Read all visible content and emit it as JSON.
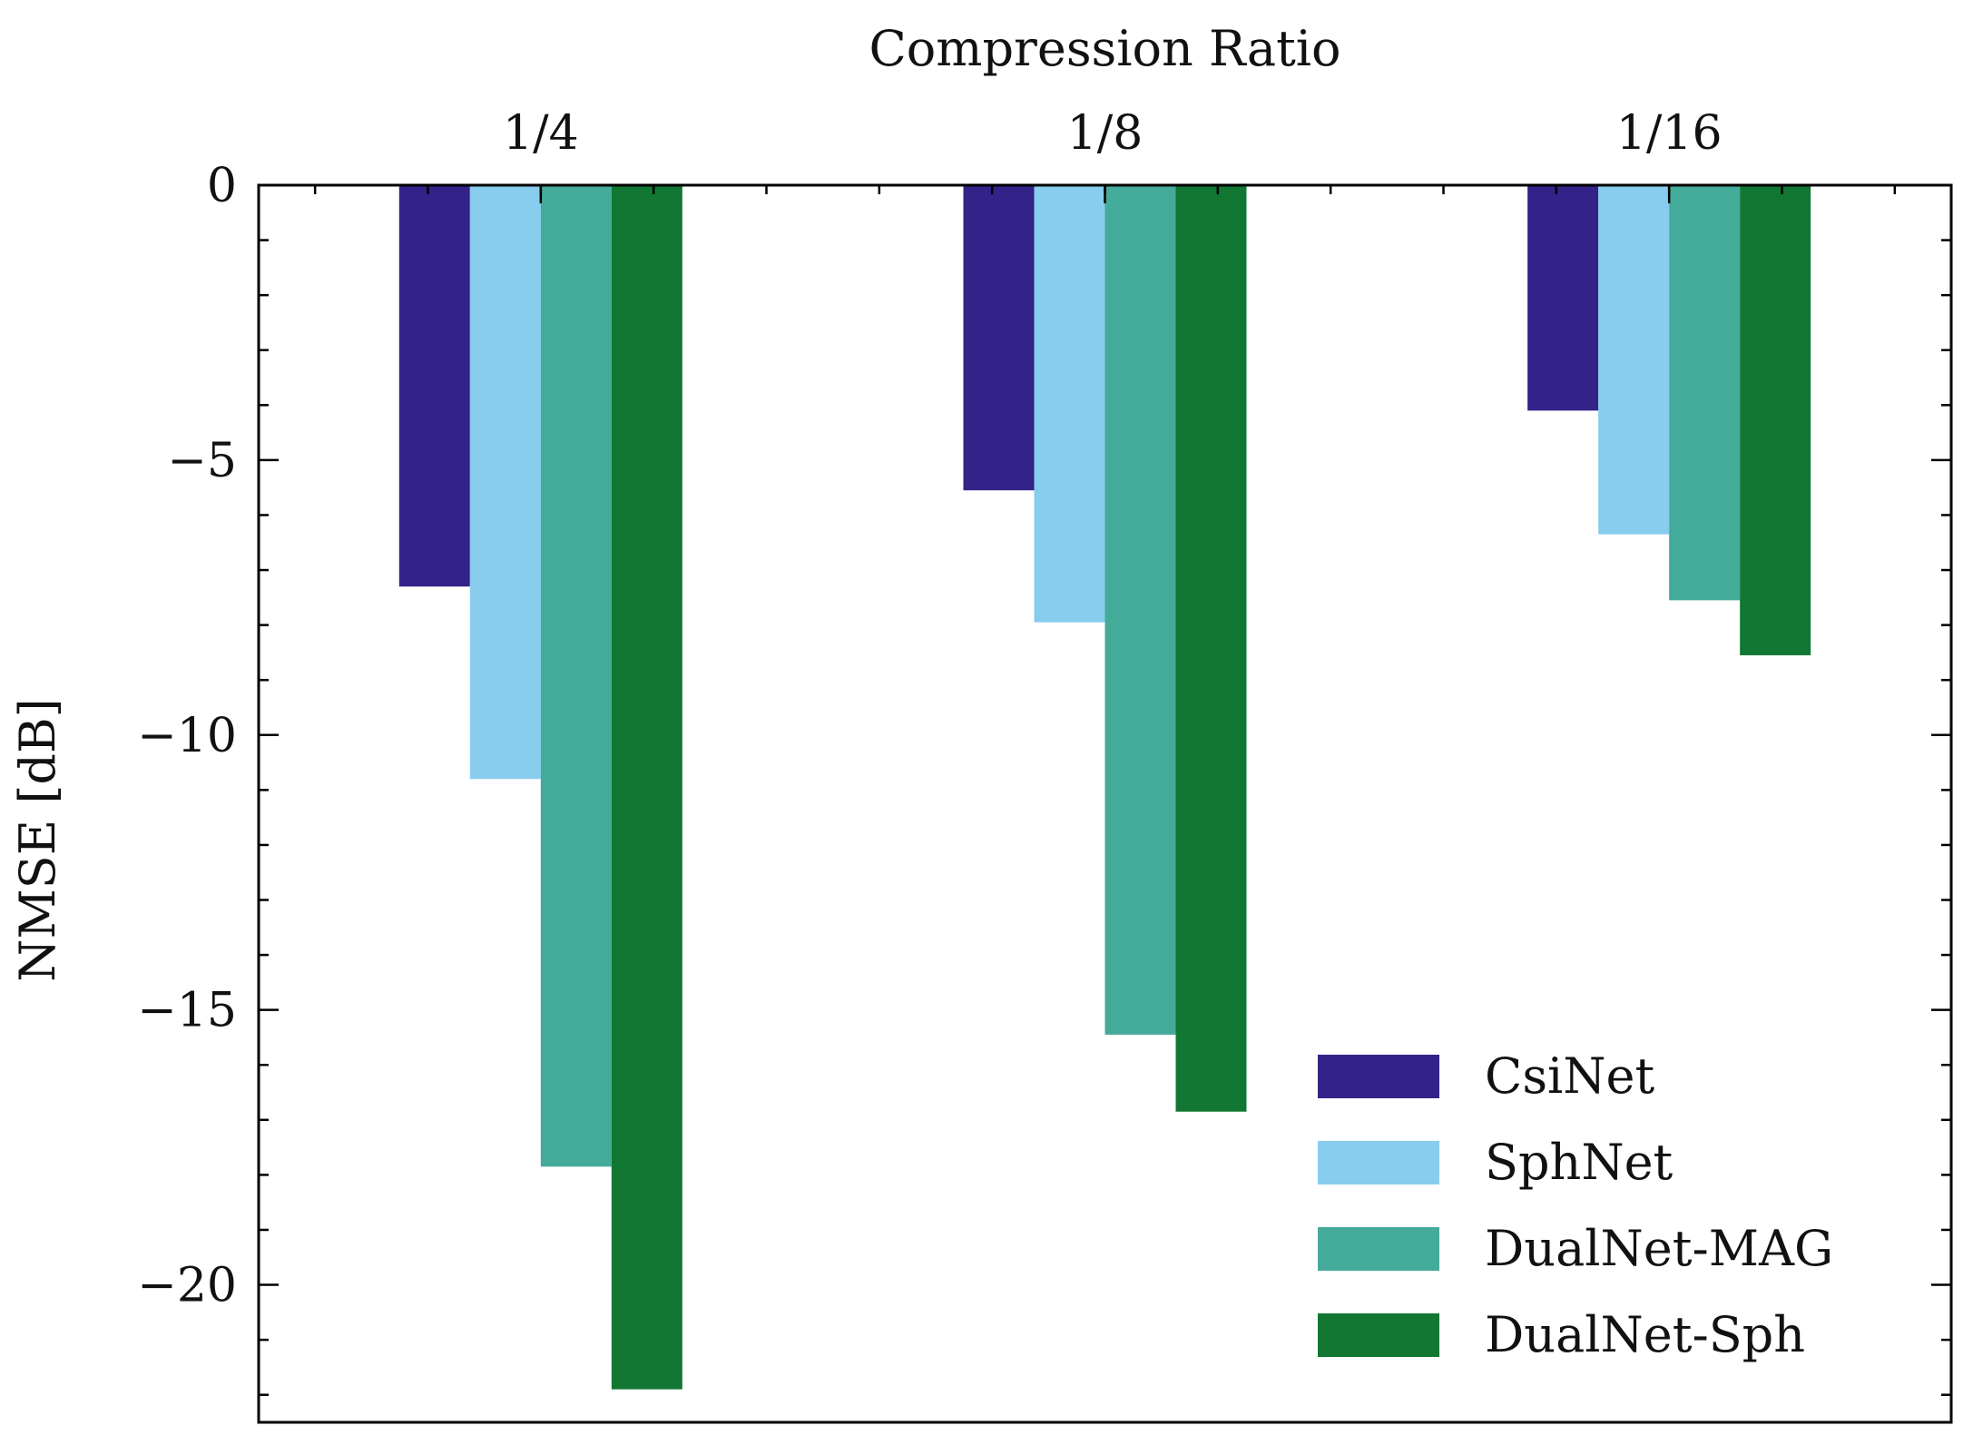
{
  "chart_data": {
    "type": "bar",
    "xlabel": "Compression Ratio",
    "ylabel": "NMSE [dB]",
    "xaxis_position": "top",
    "categories": [
      "1/4",
      "1/8",
      "1/16"
    ],
    "ylim": [
      -22.5,
      0
    ],
    "yticks": [
      0,
      -5,
      -10,
      -15,
      -20
    ],
    "ytick_labels": [
      "0",
      "−5",
      "−10",
      "−15",
      "−20"
    ],
    "grid": false,
    "legend_position": "lower-right",
    "series": [
      {
        "name": "CsiNet",
        "color": "#332288",
        "values": [
          -7.3,
          -5.55,
          -4.1
        ]
      },
      {
        "name": "SphNet",
        "color": "#88CCEE",
        "values": [
          -10.8,
          -7.95,
          -6.35
        ]
      },
      {
        "name": "DualNet-MAG",
        "color": "#44AA99",
        "values": [
          -17.85,
          -15.45,
          -7.55
        ]
      },
      {
        "name": "DualNet-Sph",
        "color": "#117733",
        "values": [
          -21.9,
          -16.85,
          -8.55
        ]
      }
    ]
  }
}
